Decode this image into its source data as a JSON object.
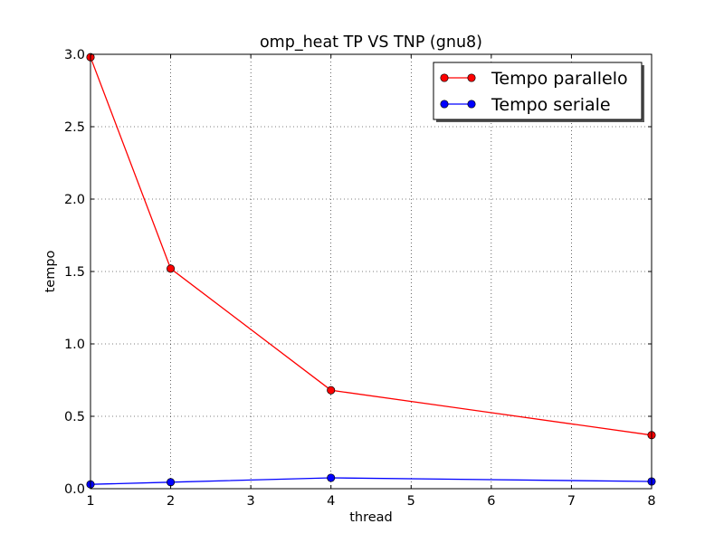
{
  "chart_data": {
    "type": "line",
    "title": "omp_heat TP VS TNP (gnu8)",
    "xlabel": "thread",
    "ylabel": "tempo",
    "xlim": [
      1,
      8
    ],
    "ylim": [
      0.0,
      3.0
    ],
    "x_ticks": [
      "1",
      "2",
      "3",
      "4",
      "5",
      "6",
      "7",
      "8"
    ],
    "y_ticks": [
      "0.0",
      "0.5",
      "1.0",
      "1.5",
      "2.0",
      "2.5",
      "3.0"
    ],
    "grid": true,
    "legend_position": "top-right",
    "x": [
      1,
      2,
      4,
      8
    ],
    "series": [
      {
        "name": "Tempo parallelo",
        "color": "#ff0000",
        "marker": "circle",
        "values": [
          2.98,
          1.52,
          0.68,
          0.37
        ]
      },
      {
        "name": "Tempo seriale",
        "color": "#0000ff",
        "marker": "circle",
        "values": [
          0.03,
          0.045,
          0.075,
          0.05
        ]
      }
    ]
  }
}
